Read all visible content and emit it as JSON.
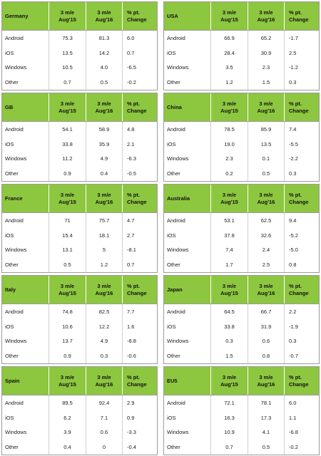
{
  "columns": {
    "period1": "3 m/e\nAug'15",
    "period2": "3 m/e\nAug'16",
    "change": "% pt.\nChange",
    "change_inline": "% pt. Change"
  },
  "tables": [
    {
      "country": "Germany",
      "rows": [
        {
          "os": "Android",
          "v1": "75.3",
          "v2": "81.3",
          "chg": "6.0"
        },
        {
          "os": "iOS",
          "v1": "13.5",
          "v2": "14.2",
          "chg": "0.7"
        },
        {
          "os": "Windows",
          "v1": "10.5",
          "v2": "4.0",
          "chg": "-6.5"
        },
        {
          "os": "Other",
          "v1": "0.7",
          "v2": "0.5",
          "chg": "-0.2"
        }
      ]
    },
    {
      "country": "USA",
      "rows": [
        {
          "os": "Android",
          "v1": "66.9",
          "v2": "65.2",
          "chg": "-1.7"
        },
        {
          "os": "iOS",
          "v1": "28.4",
          "v2": "30.9",
          "chg": "2.5"
        },
        {
          "os": "Windows",
          "v1": "3.5",
          "v2": "2.3",
          "chg": "-1.2"
        },
        {
          "os": "Other",
          "v1": "1.2",
          "v2": "1.5",
          "chg": "0.3"
        }
      ]
    },
    {
      "country": "GB",
      "rows": [
        {
          "os": "Android",
          "v1": "54.1",
          "v2": "58.9",
          "chg": "4.8"
        },
        {
          "os": "iOS",
          "v1": "33.8",
          "v2": "35.9",
          "chg": "2.1"
        },
        {
          "os": "Windows",
          "v1": "11.2",
          "v2": "4.9",
          "chg": "-6.3"
        },
        {
          "os": "Other",
          "v1": "0.9",
          "v2": "0.4",
          "chg": "-0.5"
        }
      ]
    },
    {
      "country": "China",
      "rows": [
        {
          "os": "Android",
          "v1": "78.5",
          "v2": "85.9",
          "chg": "7.4"
        },
        {
          "os": "iOS",
          "v1": "19.0",
          "v2": "13.5",
          "chg": "-5.5"
        },
        {
          "os": "Windows",
          "v1": "2.3",
          "v2": "0.1",
          "chg": "-2.2"
        },
        {
          "os": "Other",
          "v1": "0.2",
          "v2": "0.5",
          "chg": "0.3"
        }
      ]
    },
    {
      "country": "France",
      "rows": [
        {
          "os": "Android",
          "v1": "71",
          "v2": "75.7",
          "chg": "4.7"
        },
        {
          "os": "iOS",
          "v1": "15.4",
          "v2": "18.1",
          "chg": "2.7"
        },
        {
          "os": "Windows",
          "v1": "13.1",
          "v2": "5",
          "chg": "-8.1"
        },
        {
          "os": "Other",
          "v1": "0.5",
          "v2": "1.2",
          "chg": "0.7"
        }
      ]
    },
    {
      "country": "Australia",
      "rows": [
        {
          "os": "Android",
          "v1": "53.1",
          "v2": "62.5",
          "chg": "9.4"
        },
        {
          "os": "iOS",
          "v1": "37.8",
          "v2": "32.6",
          "chg": "-5.2"
        },
        {
          "os": "Windows",
          "v1": "7.4",
          "v2": "2.4",
          "chg": "-5.0"
        },
        {
          "os": "Other",
          "v1": "1.7",
          "v2": "2.5",
          "chg": "0.8"
        }
      ]
    },
    {
      "country": "Italy",
      "rows": [
        {
          "os": "Android",
          "v1": "74.8",
          "v2": "82.5",
          "chg": "7.7"
        },
        {
          "os": "iOS",
          "v1": "10.6",
          "v2": "12.2",
          "chg": "1.6"
        },
        {
          "os": "Windows",
          "v1": "13.7",
          "v2": "4.9",
          "chg": "-8.8"
        },
        {
          "os": "Other",
          "v1": "0.9",
          "v2": "0.3",
          "chg": "-0.6"
        }
      ]
    },
    {
      "country": "Japan",
      "rows": [
        {
          "os": "Android",
          "v1": "64.5",
          "v2": "66.7",
          "chg": "2.2"
        },
        {
          "os": "iOS",
          "v1": "33.8",
          "v2": "31.9",
          "chg": "-1.9"
        },
        {
          "os": "Windows",
          "v1": "0.3",
          "v2": "0.6",
          "chg": "0.3"
        },
        {
          "os": "Other",
          "v1": "1.5",
          "v2": "0.8",
          "chg": "-0.7"
        }
      ]
    },
    {
      "country": "Spain",
      "rows": [
        {
          "os": "Android",
          "v1": "89.5",
          "v2": "92.4",
          "chg": "2.9"
        },
        {
          "os": "iOS",
          "v1": "6.2",
          "v2": "7.1",
          "chg": "0.9"
        },
        {
          "os": "Windows",
          "v1": "3.9",
          "v2": "0.6",
          "chg": "-3.3"
        },
        {
          "os": "Other",
          "v1": "0.4",
          "v2": "0",
          "chg": "-0.4"
        }
      ]
    },
    {
      "country": "EU5",
      "rows": [
        {
          "os": "Android",
          "v1": "72.1",
          "v2": "78.1",
          "chg": "6.0"
        },
        {
          "os": "iOS",
          "v1": "16.3",
          "v2": "17.3",
          "chg": "1.1"
        },
        {
          "os": "Windows",
          "v1": "10.9",
          "v2": "4.1",
          "chg": "-6.8"
        },
        {
          "os": "Other",
          "v1": "0.7",
          "v2": "0.5",
          "chg": "-0.2"
        }
      ]
    }
  ],
  "colors": {
    "header_bg": "#8dc63f",
    "border": "#9c9c9c"
  }
}
